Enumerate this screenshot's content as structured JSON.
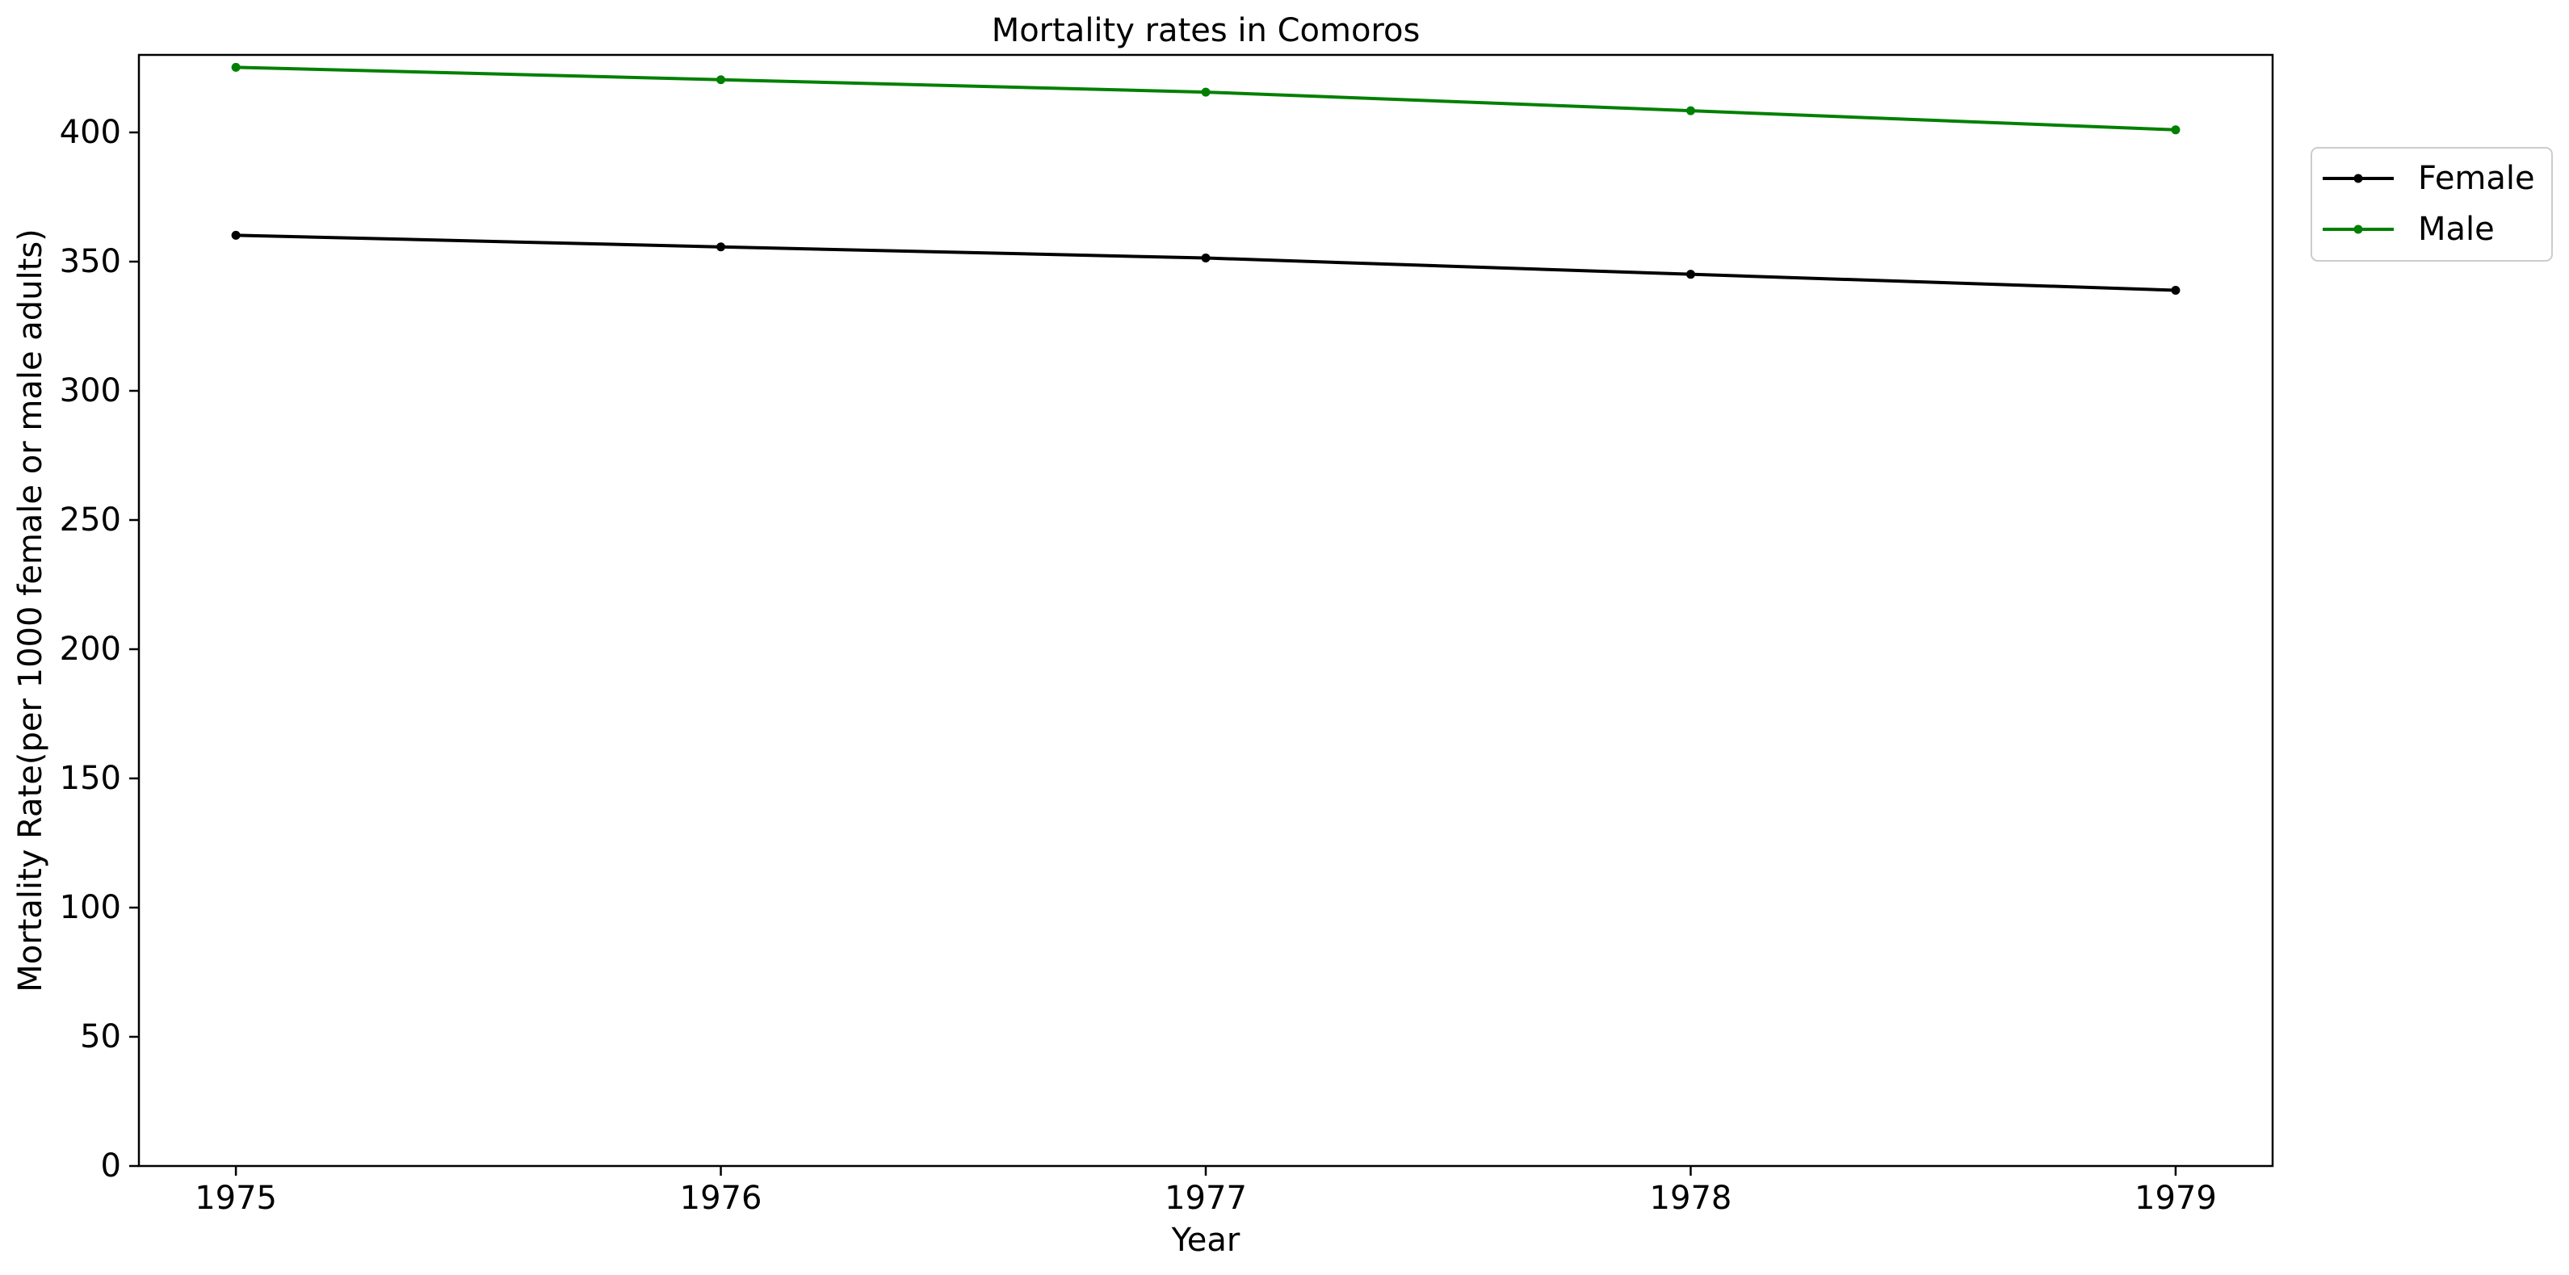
{
  "chart_data": {
    "type": "line",
    "title": "Mortality rates in Comoros",
    "xlabel": "Year",
    "ylabel": "Mortality Rate(per 1000 female or male adults)",
    "x": [
      1975,
      1976,
      1977,
      1978,
      1979
    ],
    "xlim": [
      1974.8,
      1979.2
    ],
    "ylim": [
      0,
      430
    ],
    "yticks": [
      0,
      50,
      100,
      150,
      200,
      250,
      300,
      350,
      400
    ],
    "grid": false,
    "legend_position": "outside top-right",
    "series": [
      {
        "name": "Female",
        "color": "#000000",
        "values": [
          360.2,
          355.7,
          351.4,
          345.1,
          338.9
        ]
      },
      {
        "name": "Male",
        "color": "#008000",
        "values": [
          425.2,
          420.4,
          415.6,
          408.4,
          401.0
        ]
      }
    ]
  }
}
